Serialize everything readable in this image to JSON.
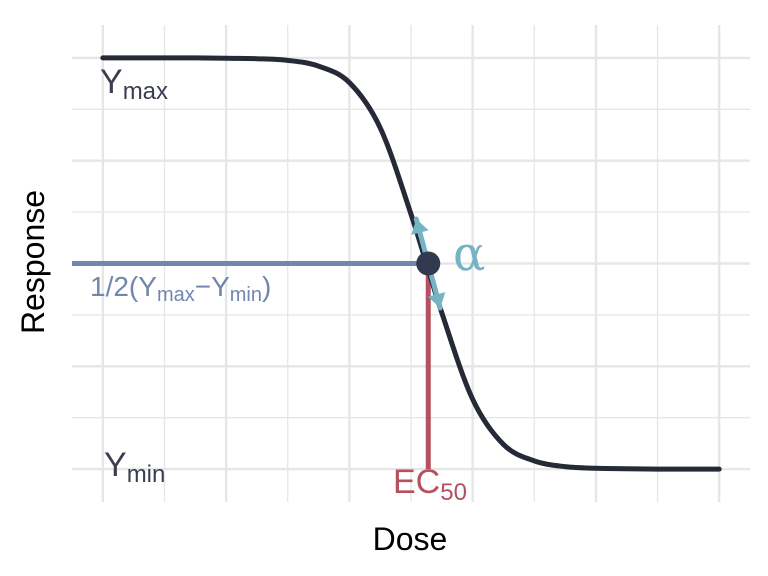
{
  "chart_data": {
    "type": "line",
    "title": "",
    "xlabel": "Dose",
    "ylabel": "Response",
    "grid": true,
    "legend": "none",
    "xlim": [
      -0.25,
      5.25
    ],
    "ylim": [
      -0.08,
      1.08
    ],
    "series": [
      {
        "x": [
          0,
          0.25,
          0.5,
          0.75,
          1,
          1.25,
          1.5,
          1.75,
          2,
          2.25,
          2.5,
          2.75,
          3,
          3.25,
          3.5,
          3.75,
          4,
          4.25,
          4.5,
          4.75,
          5
        ],
        "values": [
          1.0,
          1.0,
          1.0,
          1.0,
          0.999,
          0.998,
          0.994,
          0.98,
          0.94,
          0.83,
          0.62,
          0.38,
          0.17,
          0.06,
          0.02,
          0.006,
          0.002,
          0.001,
          0.0,
          0.0,
          0.0
        ]
      }
    ],
    "ec50": {
      "x": 2.64,
      "y": 0.5
    },
    "annotations": {
      "ymax_main": "Y",
      "ymax_sub": "max",
      "ymin_main": "Y",
      "ymin_sub": "min",
      "half_prefix": "1/2(Y",
      "half_sub1": "max",
      "half_mid": "−Y",
      "half_sub2": "min",
      "half_suffix": ")",
      "ec_main": "EC",
      "ec_sub": "50",
      "alpha": "α"
    },
    "colors": {
      "curve": "#252a36",
      "point": "#323a4f",
      "half": "#7287ad",
      "ec50": "#b5505f",
      "slope": "#76b3c5",
      "label": "#3a3f50",
      "grid": "#e6e6e6"
    }
  }
}
